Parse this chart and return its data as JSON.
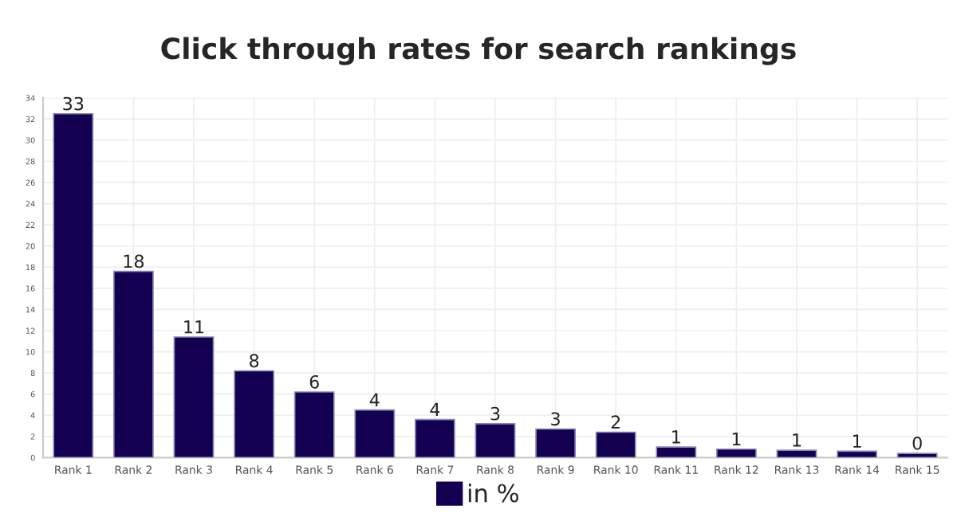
{
  "chart_data": {
    "type": "bar",
    "title": "Click through rates for search rankings",
    "categories": [
      "Rank 1",
      "Rank 2",
      "Rank 3",
      "Rank 4",
      "Rank 5",
      "Rank 6",
      "Rank 7",
      "Rank 8",
      "Rank 9",
      "Rank 10",
      "Rank 11",
      "Rank 12",
      "Rank 13",
      "Rank 14",
      "Rank 15"
    ],
    "series": [
      {
        "name": "in %",
        "color": "#140050",
        "values": [
          32.5,
          17.6,
          11.4,
          8.2,
          6.2,
          4.5,
          3.6,
          3.2,
          2.7,
          2.4,
          1.0,
          0.8,
          0.7,
          0.6,
          0.4
        ],
        "value_labels": [
          "33",
          "18",
          "11",
          "8",
          "6",
          "4",
          "4",
          "3",
          "3",
          "2",
          "1",
          "1",
          "1",
          "1",
          "0"
        ]
      }
    ],
    "ylim": [
      0,
      34
    ],
    "yticks": [
      0,
      2,
      4,
      6,
      8,
      10,
      12,
      14,
      16,
      18,
      20,
      22,
      24,
      26,
      28,
      30,
      32,
      34
    ],
    "grid": true,
    "legend": "bottom"
  }
}
